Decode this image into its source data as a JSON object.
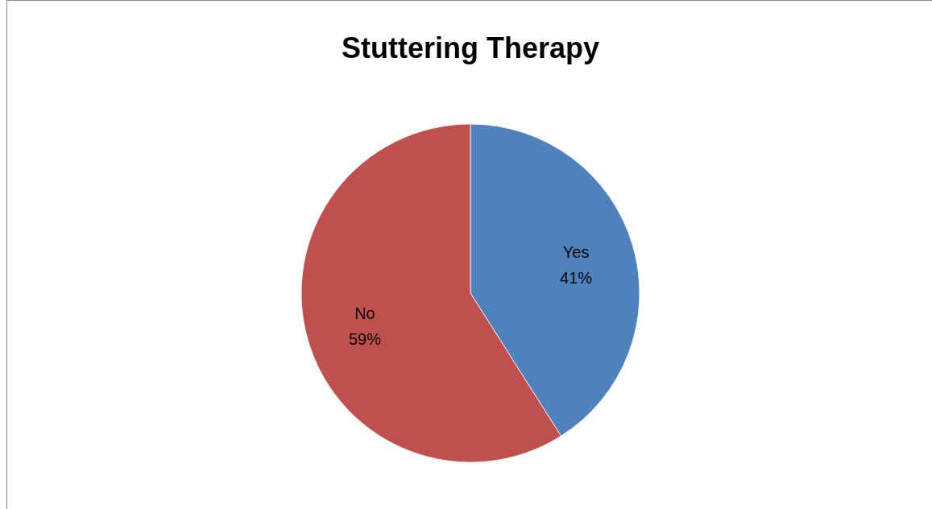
{
  "chart_data": {
    "type": "pie",
    "title": "Stuttering Therapy",
    "categories": [
      "Yes",
      "No"
    ],
    "values": [
      41,
      59
    ],
    "colors": [
      "#4f81bd",
      "#c0504d"
    ],
    "value_labels": [
      "41%",
      "59%"
    ],
    "legend": false
  }
}
